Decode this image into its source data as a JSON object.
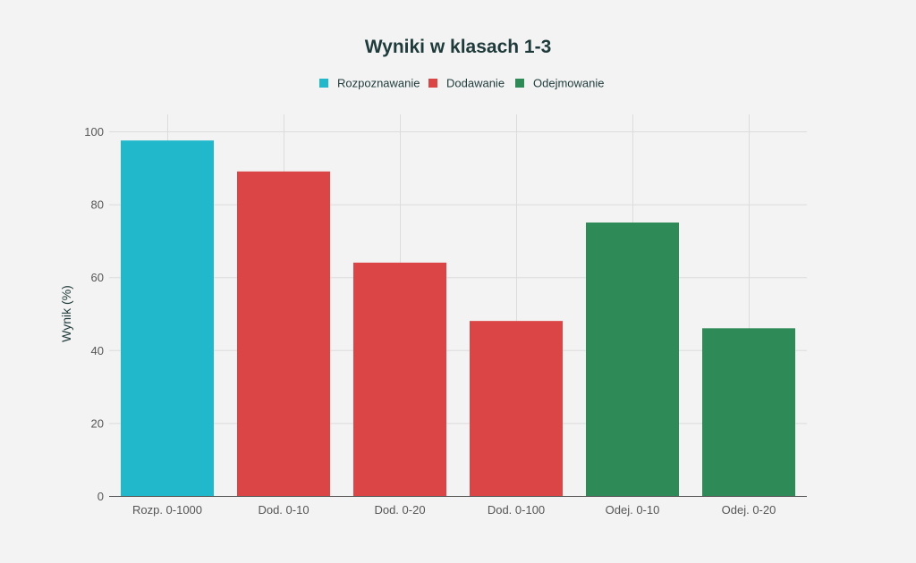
{
  "chart_data": {
    "type": "bar",
    "title": "Wyniki w klasach 1-3",
    "xlabel": "",
    "ylabel": "Wynik (%)",
    "ylim": [
      0,
      100
    ],
    "yticks": [
      0,
      20,
      40,
      60,
      80,
      100
    ],
    "grid": true,
    "legend_position": "top-center",
    "legend": [
      {
        "name": "Rozpoznawanie",
        "color": "#22b8cc"
      },
      {
        "name": "Dodawanie",
        "color": "#db4545"
      },
      {
        "name": "Odejmowanie",
        "color": "#2e8b57"
      }
    ],
    "categories": [
      "Rozp. 0-1000",
      "Dod. 0-10",
      "Dod. 0-20",
      "Dod. 0-100",
      "Odej. 0-10",
      "Odej. 0-20"
    ],
    "values": [
      97.5,
      89,
      64,
      48,
      75,
      46
    ],
    "groups": [
      0,
      1,
      1,
      1,
      2,
      2
    ]
  }
}
